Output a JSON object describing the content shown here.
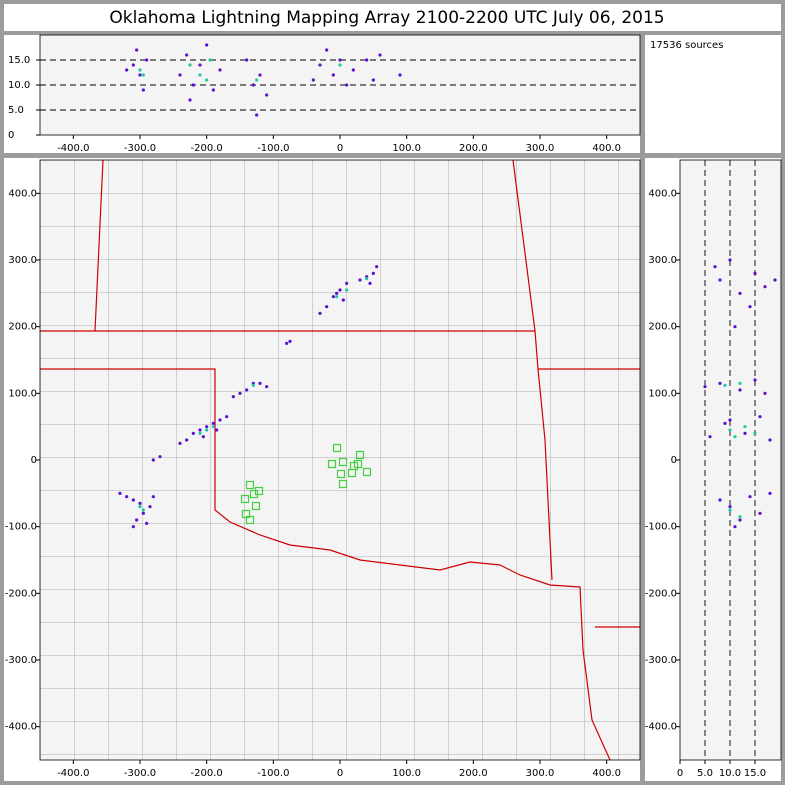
{
  "title": "Oklahoma Lightning Mapping Array   2100-2200 UTC  July 06, 2015",
  "annotation": "17536 sources",
  "chart_data": [
    {
      "type": "scatter",
      "xlim": [
        -450,
        450
      ],
      "ylim": [
        0,
        20
      ],
      "xticks": [
        {
          "value": -400,
          "label": "-400.0"
        },
        {
          "value": -300,
          "label": "-300.0"
        },
        {
          "value": -200,
          "label": "-200.0"
        },
        {
          "value": -100,
          "label": "-100.0"
        },
        0,
        {
          "value": 100,
          "label": "100.0"
        },
        {
          "value": 200,
          "label": "200.0"
        },
        {
          "value": 300,
          "label": "300.0"
        },
        {
          "value": 400,
          "label": "400.0"
        }
      ],
      "yticks": [
        0,
        {
          "value": 5,
          "label": "5.0"
        },
        {
          "value": 10,
          "label": "10.0"
        },
        {
          "value": 15,
          "label": "15.0"
        }
      ],
      "reference_lines": {
        "axis": "y",
        "values": [
          5,
          10,
          15
        ]
      },
      "series": [
        {
          "color": "#5a10d0",
          "x": [
            -320,
            -310,
            -300,
            -290,
            -305,
            -295,
            -240,
            -230,
            -220,
            -210,
            -200,
            -190,
            -180,
            -225,
            -130,
            -120,
            -110,
            -140,
            -125,
            -30,
            -20,
            -10,
            0,
            10,
            20,
            40,
            50,
            60,
            90,
            -40
          ],
          "values": [
            13,
            14,
            12,
            15,
            17,
            9,
            12,
            16,
            10,
            14,
            18,
            9,
            13,
            7,
            10,
            12,
            8,
            15,
            4,
            14,
            17,
            12,
            15,
            10,
            13,
            15,
            11,
            16,
            12,
            11
          ]
        },
        {
          "color": "#20c8a8",
          "x": [
            -300,
            -295,
            -225,
            -210,
            -200,
            -195,
            -125,
            0
          ],
          "values": [
            13,
            12,
            14,
            12,
            11,
            15,
            11,
            14
          ]
        }
      ]
    },
    {
      "type": "scatter",
      "xlim": [
        -450,
        450
      ],
      "ylim": [
        -450,
        450
      ],
      "xticks": [
        {
          "value": -400,
          "label": "-400.0"
        },
        {
          "value": -300,
          "label": "-300.0"
        },
        {
          "value": -200,
          "label": "-200.0"
        },
        {
          "value": -100,
          "label": "-100.0"
        },
        0,
        {
          "value": 100,
          "label": "100.0"
        },
        {
          "value": 200,
          "label": "200.0"
        },
        {
          "value": 300,
          "label": "300.0"
        },
        {
          "value": 400,
          "label": "400.0"
        }
      ],
      "yticks": [
        {
          "value": -400,
          "label": "-400.0"
        },
        {
          "value": -300,
          "label": "-300.0"
        },
        {
          "value": -200,
          "label": "-200.0"
        },
        {
          "value": -100,
          "label": "-100.0"
        },
        0,
        {
          "value": 100,
          "label": "100.0"
        },
        {
          "value": 200,
          "label": "200.0"
        },
        {
          "value": 300,
          "label": "300.0"
        },
        {
          "value": 400,
          "label": "400.0"
        }
      ],
      "series": [
        {
          "color": "#5a10d0",
          "x": [
            -330,
            -320,
            -310,
            -300,
            -295,
            -305,
            -290,
            -285,
            -310,
            -280,
            -240,
            -230,
            -220,
            -210,
            -200,
            -190,
            -180,
            -170,
            -205,
            -185,
            -280,
            -270,
            -150,
            -140,
            -130,
            -120,
            -110,
            -160,
            -80,
            -75,
            -30,
            -20,
            -10,
            0,
            10,
            5,
            -5,
            30,
            40,
            50,
            55,
            45
          ],
          "values": [
            -50,
            -55,
            -60,
            -65,
            -80,
            -90,
            -95,
            -70,
            -100,
            -55,
            25,
            30,
            40,
            45,
            50,
            55,
            60,
            65,
            35,
            45,
            0,
            5,
            100,
            105,
            115,
            115,
            110,
            95,
            175,
            178,
            220,
            230,
            245,
            255,
            265,
            240,
            250,
            270,
            275,
            280,
            290,
            265
          ]
        },
        {
          "color": "#20c8a8",
          "x": [
            -300,
            -295,
            -210,
            -200,
            -190,
            -130,
            -5,
            10,
            40
          ],
          "values": [
            -70,
            -75,
            40,
            45,
            50,
            112,
            245,
            255,
            272
          ]
        },
        {
          "color": "#40d040",
          "marker": "square-open",
          "x": [
            -4.5,
            -12,
            4.5,
            21,
            30,
            27,
            40.5,
            1.5,
            18,
            4.5,
            -135,
            -129,
            -121.5,
            -142.5,
            -126,
            -141,
            -135
          ],
          "values": [
            18,
            -6,
            -3,
            -9,
            7.5,
            -6,
            -18,
            -21,
            -19.5,
            -36,
            -37.5,
            -51,
            -46.5,
            -58.5,
            -69,
            -81,
            -90
          ]
        }
      ]
    },
    {
      "type": "scatter",
      "xlim": [
        0,
        20
      ],
      "ylim": [
        -450,
        450
      ],
      "xticks": [
        0,
        {
          "value": 5,
          "label": "5.0"
        },
        {
          "value": 10,
          "label": "10.0"
        },
        {
          "value": 15,
          "label": "15.0"
        }
      ],
      "yticks": [
        {
          "value": -400,
          "label": "-400.0"
        },
        {
          "value": -300,
          "label": "-300.0"
        },
        {
          "value": -200,
          "label": "-200.0"
        },
        {
          "value": -100,
          "label": "-100.0"
        },
        0,
        {
          "value": 100,
          "label": "100.0"
        },
        {
          "value": 200,
          "label": "200.0"
        },
        {
          "value": 300,
          "label": "300.0"
        },
        {
          "value": 400,
          "label": "400.0"
        }
      ],
      "reference_lines": {
        "axis": "x",
        "values": [
          5,
          10,
          15
        ]
      },
      "series": [
        {
          "color": "#5a10d0",
          "x": [
            8,
            10,
            12,
            14,
            16,
            11,
            18,
            5,
            8,
            12,
            15,
            17,
            6,
            9,
            13,
            16,
            18,
            10,
            8,
            12,
            15,
            17,
            10,
            14,
            19,
            11,
            7
          ],
          "values": [
            -60,
            -70,
            -90,
            -55,
            -80,
            -100,
            -50,
            110,
            115,
            105,
            120,
            100,
            35,
            55,
            40,
            65,
            30,
            60,
            270,
            250,
            280,
            260,
            300,
            230,
            270,
            200,
            290
          ]
        },
        {
          "color": "#20c8a8",
          "x": [
            10,
            12,
            9,
            12,
            10,
            13,
            11,
            15
          ],
          "values": [
            -75,
            -85,
            112,
            115,
            45,
            50,
            35,
            40
          ]
        }
      ]
    }
  ]
}
